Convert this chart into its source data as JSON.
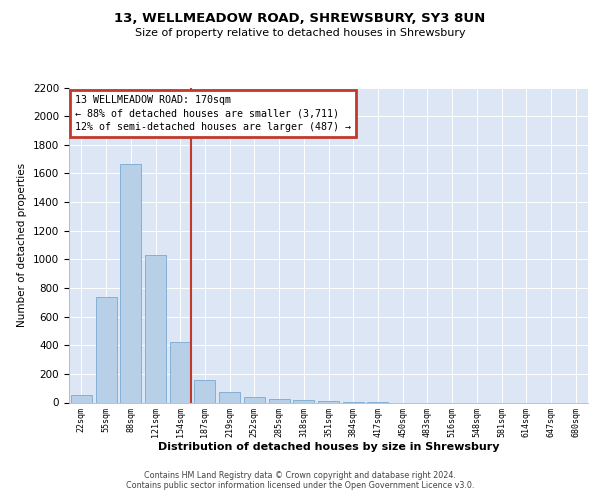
{
  "title1": "13, WELLMEADOW ROAD, SHREWSBURY, SY3 8UN",
  "title2": "Size of property relative to detached houses in Shrewsbury",
  "xlabel": "Distribution of detached houses by size in Shrewsbury",
  "ylabel": "Number of detached properties",
  "bar_labels": [
    "22sqm",
    "55sqm",
    "88sqm",
    "121sqm",
    "154sqm",
    "187sqm",
    "219sqm",
    "252sqm",
    "285sqm",
    "318sqm",
    "351sqm",
    "384sqm",
    "417sqm",
    "450sqm",
    "483sqm",
    "516sqm",
    "548sqm",
    "581sqm",
    "614sqm",
    "647sqm",
    "680sqm"
  ],
  "bar_values": [
    50,
    740,
    1665,
    1030,
    420,
    155,
    70,
    40,
    25,
    18,
    10,
    5,
    2,
    0,
    0,
    0,
    0,
    0,
    0,
    0,
    0
  ],
  "bar_color": "#b8cfe8",
  "bar_edge_color": "#7aaad0",
  "vline_color": "#c0392b",
  "vline_x_idx": 4.0,
  "annotation_line1": "13 WELLMEADOW ROAD: 170sqm",
  "annotation_line2": "← 88% of detached houses are smaller (3,711)",
  "annotation_line3": "12% of semi-detached houses are larger (487) →",
  "annotation_box_edgecolor": "#c0392b",
  "ylim_max": 2200,
  "ytick_step": 200,
  "background_color": "#dce6f5",
  "grid_color": "#ffffff",
  "footer1": "Contains HM Land Registry data © Crown copyright and database right 2024.",
  "footer2": "Contains public sector information licensed under the Open Government Licence v3.0."
}
